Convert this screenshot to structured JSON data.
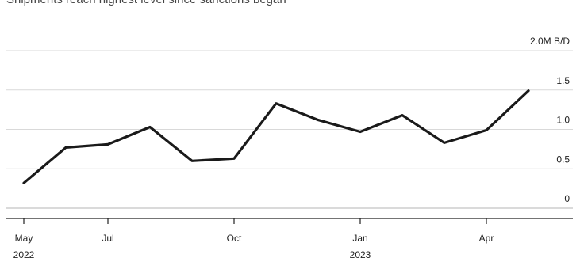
{
  "caption": "Shipments reach highest level since sanctions began",
  "chart_data": {
    "type": "line",
    "ylabel_unit": "M B/D",
    "ylim": [
      0,
      2.0
    ],
    "y_ticks": [
      {
        "value": 0,
        "label": "0"
      },
      {
        "value": 0.5,
        "label": "0.5"
      },
      {
        "value": 1.0,
        "label": "1.0"
      },
      {
        "value": 1.5,
        "label": "1.5"
      },
      {
        "value": 2.0,
        "label": "2.0M B/D"
      }
    ],
    "x_ticks": [
      {
        "date": "2022-05",
        "label": "May",
        "sublabel": "2022"
      },
      {
        "date": "2022-07",
        "label": "Jul",
        "sublabel": ""
      },
      {
        "date": "2022-10",
        "label": "Oct",
        "sublabel": ""
      },
      {
        "date": "2023-01",
        "label": "Jan",
        "sublabel": "2023"
      },
      {
        "date": "2023-04",
        "label": "Apr",
        "sublabel": ""
      }
    ],
    "xlim": [
      "2022-05",
      "2023-06"
    ],
    "grid": true,
    "line_color": "#1a1a1a",
    "series": [
      {
        "x": [
          "2022-05",
          "2022-06",
          "2022-07",
          "2022-08",
          "2022-09",
          "2022-10",
          "2022-11",
          "2022-12",
          "2023-01",
          "2023-02",
          "2023-03",
          "2023-04",
          "2023-05"
        ],
        "values": [
          0.32,
          0.77,
          0.81,
          1.03,
          0.6,
          0.63,
          1.33,
          1.12,
          0.97,
          1.18,
          0.83,
          0.99,
          1.49
        ]
      }
    ]
  }
}
